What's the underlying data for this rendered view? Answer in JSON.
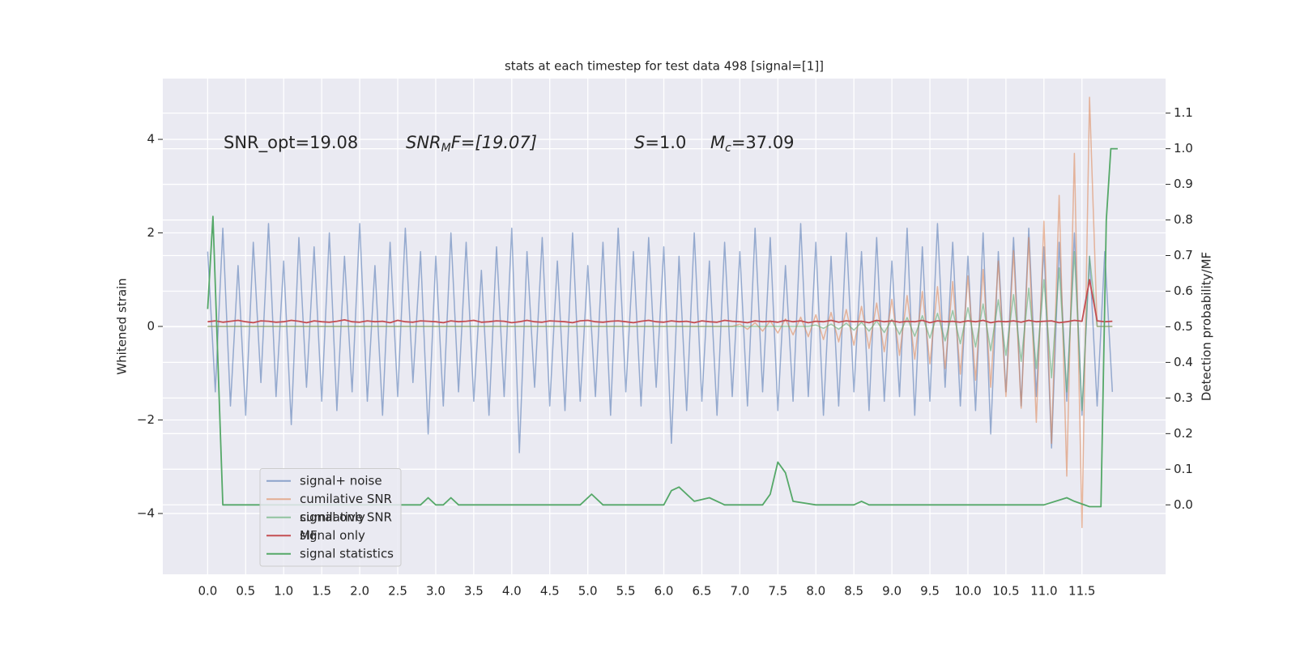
{
  "chart_data": {
    "type": "line",
    "title": "stats at each timestep for test data 498 [signal=[1]]",
    "ylabel": "Whitened strain",
    "y2label": "Detection probability/MF",
    "annotations": [
      {
        "text": "SNR_opt=19.08"
      },
      {
        "base": "SNR",
        "sub": "M",
        "rest": "F=[19.07]"
      },
      {
        "base": "S",
        "rest": "=1.0"
      },
      {
        "base": "M",
        "sub": "c",
        "rest": "=37.09"
      }
    ],
    "grid": true,
    "legend": "lower left",
    "ghost_legend": [
      "cumilative SNR",
      "signal only"
    ],
    "xlim": [
      -0.59,
      12.6
    ],
    "ylim": [
      -5.3,
      5.3
    ],
    "y2lim": [
      -0.195,
      1.197
    ],
    "xticks": [
      {
        "value": 0,
        "label": "0.0"
      },
      0.5,
      {
        "value": 1,
        "label": "1.0"
      },
      1.5,
      {
        "value": 2,
        "label": "2.0"
      },
      2.5,
      {
        "value": 3,
        "label": "3.0"
      },
      3.5,
      {
        "value": 4,
        "label": "4.0"
      },
      4.5,
      {
        "value": 5,
        "label": "5.0"
      },
      5.5,
      {
        "value": 6,
        "label": "6.0"
      },
      6.5,
      {
        "value": 7,
        "label": "7.0"
      },
      7.5,
      {
        "value": 8,
        "label": "8.0"
      },
      8.5,
      {
        "value": 9,
        "label": "9.0"
      },
      9.5,
      {
        "value": 10,
        "label": "10.0"
      },
      10.5,
      {
        "value": 11,
        "label": "11.0"
      },
      11.5
    ],
    "yticks": [
      {
        "value": -4,
        "label": "−4"
      },
      {
        "value": -2,
        "label": "−2"
      },
      0,
      2,
      4
    ],
    "y2ticks": [
      {
        "value": 0,
        "label": "0.0"
      },
      0.1,
      0.2,
      0.3,
      0.4,
      0.5,
      0.6,
      0.7,
      0.8,
      0.9,
      {
        "value": 1,
        "label": "1.0"
      },
      1.1
    ],
    "x": [
      0,
      0.1,
      0.2,
      0.3,
      0.4,
      0.5,
      0.6,
      0.7,
      0.8,
      0.9,
      1,
      1.1,
      1.2,
      1.3,
      1.4,
      1.5,
      1.6,
      1.7,
      1.8,
      1.9,
      2,
      2.1,
      2.2,
      2.3,
      2.4,
      2.5,
      2.6,
      2.7,
      2.8,
      2.9,
      3,
      3.1,
      3.2,
      3.3,
      3.4,
      3.5,
      3.6,
      3.7,
      3.8,
      3.9,
      4,
      4.1,
      4.2,
      4.3,
      4.4,
      4.5,
      4.6,
      4.7,
      4.8,
      4.9,
      5,
      5.1,
      5.2,
      5.3,
      5.4,
      5.5,
      5.6,
      5.7,
      5.8,
      5.9,
      6,
      6.1,
      6.2,
      6.3,
      6.4,
      6.5,
      6.6,
      6.7,
      6.8,
      6.9,
      7,
      7.1,
      7.2,
      7.3,
      7.4,
      7.5,
      7.6,
      7.7,
      7.8,
      7.9,
      8,
      8.1,
      8.2,
      8.3,
      8.4,
      8.5,
      8.6,
      8.7,
      8.8,
      8.9,
      9,
      9.1,
      9.2,
      9.3,
      9.4,
      9.5,
      9.6,
      9.7,
      9.8,
      9.9,
      10,
      10.1,
      10.2,
      10.3,
      10.4,
      10.5,
      10.6,
      10.7,
      10.8,
      10.9,
      11,
      11.1,
      11.2,
      11.3,
      11.4,
      11.5,
      11.6,
      11.7,
      11.8,
      11.9
    ],
    "series": [
      {
        "name": "signal+ noise",
        "color": "#4c72b0",
        "values": [
          1.6,
          -1.4,
          2.1,
          -1.7,
          1.3,
          -1.9,
          1.8,
          -1.2,
          2.2,
          -1.5,
          1.4,
          -2.1,
          1.9,
          -1.3,
          1.7,
          -1.6,
          2.0,
          -1.8,
          1.5,
          -1.4,
          2.2,
          -1.6,
          1.3,
          -1.9,
          1.8,
          -1.5,
          2.1,
          -1.2,
          1.6,
          -2.3,
          1.5,
          -1.7,
          2.0,
          -1.4,
          1.8,
          -1.6,
          1.2,
          -1.9,
          1.7,
          -1.5,
          2.1,
          -2.7,
          1.6,
          -1.3,
          1.9,
          -1.7,
          1.4,
          -1.8,
          2.0,
          -1.6,
          1.3,
          -1.5,
          1.8,
          -1.9,
          2.1,
          -1.4,
          1.6,
          -1.7,
          1.9,
          -1.3,
          1.7,
          -2.5,
          1.5,
          -1.8,
          2.0,
          -1.6,
          1.4,
          -1.9,
          1.8,
          -1.5,
          1.6,
          -1.7,
          2.1,
          -1.4,
          1.9,
          -1.8,
          1.3,
          -1.6,
          2.2,
          -1.5,
          1.8,
          -1.9,
          1.5,
          -1.7,
          2.0,
          -1.4,
          1.6,
          -1.8,
          1.9,
          -1.6,
          1.4,
          -1.5,
          2.1,
          -1.9,
          1.7,
          -1.6,
          2.2,
          -1.3,
          1.8,
          -1.7,
          1.5,
          -1.8,
          2.0,
          -2.3,
          1.6,
          -1.4,
          1.9,
          -1.7,
          2.1,
          -1.5,
          1.7,
          -2.6,
          1.8,
          -1.6,
          2.0,
          -1.9,
          1.5,
          -1.7,
          1.6,
          -1.4
        ]
      },
      {
        "name": "cumilative SNR",
        "color": "#dd8452",
        "values": [
          0,
          0,
          0,
          0,
          0,
          0,
          0,
          0,
          0,
          0,
          0,
          0,
          0,
          0,
          0,
          0,
          0,
          0,
          0,
          0,
          0,
          0,
          0,
          0,
          0,
          0,
          0,
          0,
          0,
          0,
          0,
          0,
          0,
          0,
          0,
          0,
          0,
          0,
          0,
          0,
          0,
          0,
          0,
          0,
          0,
          0,
          0,
          0,
          0,
          0,
          0,
          0,
          0,
          0,
          0,
          0,
          0,
          0,
          0,
          0,
          0,
          0,
          0,
          0,
          0,
          0,
          0,
          0,
          0,
          0,
          0.05,
          -0.06,
          0.08,
          -0.1,
          0.12,
          -0.14,
          0.16,
          -0.18,
          0.2,
          -0.22,
          0.25,
          -0.28,
          0.3,
          -0.33,
          0.36,
          -0.4,
          0.43,
          -0.47,
          0.5,
          -0.54,
          0.58,
          -0.62,
          0.66,
          -0.7,
          0.75,
          -0.8,
          0.85,
          -0.9,
          0.96,
          -1.02,
          1.08,
          -1.15,
          1.22,
          -1.3,
          1.4,
          -1.5,
          1.62,
          -1.75,
          1.9,
          -2.05,
          2.25,
          -2.5,
          2.8,
          -3.2,
          3.7,
          -4.3,
          4.9,
          0,
          0,
          0
        ]
      },
      {
        "name": "signal only",
        "color": "#55a868",
        "values": [
          0,
          0,
          0,
          0,
          0,
          0,
          0,
          0,
          0,
          0,
          0,
          0,
          0,
          0,
          0,
          0,
          0,
          0,
          0,
          0,
          0,
          0,
          0,
          0,
          0,
          0,
          0,
          0,
          0,
          0,
          0,
          0,
          0,
          0,
          0,
          0,
          0,
          0,
          0,
          0,
          0,
          0,
          0,
          0,
          0,
          0,
          0,
          0,
          0,
          0,
          0,
          0,
          0,
          0,
          0,
          0,
          0,
          0,
          0,
          0,
          0,
          0,
          0,
          0,
          0,
          0,
          0,
          0,
          0,
          0,
          0,
          0,
          0,
          0,
          0,
          0,
          0,
          0,
          0,
          0,
          0.03,
          -0.04,
          0.05,
          -0.06,
          0.07,
          -0.08,
          0.09,
          -0.1,
          0.12,
          -0.13,
          0.15,
          -0.17,
          0.19,
          -0.21,
          0.23,
          -0.25,
          0.28,
          -0.31,
          0.34,
          -0.37,
          0.4,
          -0.44,
          0.48,
          -0.52,
          0.57,
          -0.62,
          0.68,
          -0.75,
          0.82,
          -0.9,
          1.0,
          -1.1,
          1.25,
          -1.4,
          1.6,
          -1.8,
          1.5,
          0,
          0,
          0
        ]
      },
      {
        "name": "MF",
        "color": "#c44e52",
        "values": [
          0.1,
          0.12,
          0.09,
          0.11,
          0.13,
          0.1,
          0.08,
          0.12,
          0.11,
          0.09,
          0.1,
          0.13,
          0.11,
          0.08,
          0.12,
          0.1,
          0.09,
          0.11,
          0.14,
          0.1,
          0.09,
          0.12,
          0.1,
          0.11,
          0.08,
          0.13,
          0.1,
          0.09,
          0.12,
          0.11,
          0.1,
          0.08,
          0.12,
          0.1,
          0.11,
          0.13,
          0.09,
          0.1,
          0.12,
          0.11,
          0.08,
          0.1,
          0.13,
          0.1,
          0.09,
          0.12,
          0.11,
          0.1,
          0.08,
          0.12,
          0.13,
          0.1,
          0.09,
          0.11,
          0.12,
          0.1,
          0.08,
          0.11,
          0.13,
          0.1,
          0.09,
          0.12,
          0.1,
          0.11,
          0.08,
          0.12,
          0.1,
          0.09,
          0.13,
          0.11,
          0.1,
          0.08,
          0.12,
          0.1,
          0.11,
          0.09,
          0.13,
          0.1,
          0.12,
          0.08,
          0.11,
          0.1,
          0.13,
          0.09,
          0.12,
          0.1,
          0.11,
          0.08,
          0.13,
          0.1,
          0.12,
          0.09,
          0.11,
          0.1,
          0.13,
          0.08,
          0.12,
          0.1,
          0.11,
          0.09,
          0.12,
          0.1,
          0.13,
          0.08,
          0.11,
          0.1,
          0.12,
          0.09,
          0.13,
          0.1,
          0.11,
          0.12,
          0.08,
          0.1,
          0.13,
          0.11,
          1.0,
          0.12,
          0.1,
          0.11
        ]
      },
      {
        "name": "signal statistics",
        "color": "#55a868",
        "axis": "y2",
        "x": [
          0,
          0.07,
          0.2,
          0.5,
          1,
          1.5,
          2,
          2.5,
          2.8,
          2.9,
          3.0,
          3.1,
          3.2,
          3.3,
          3.5,
          4,
          4.5,
          4.9,
          5.05,
          5.2,
          5.5,
          6,
          6.1,
          6.2,
          6.4,
          6.6,
          6.8,
          7,
          7.3,
          7.4,
          7.5,
          7.6,
          7.7,
          8,
          8.5,
          8.6,
          8.7,
          9,
          10,
          11,
          11.3,
          11.4,
          11.6,
          11.65,
          11.75,
          11.82,
          11.88,
          11.92,
          11.97
        ],
        "values": [
          0.55,
          0.81,
          0,
          0,
          0,
          0,
          0,
          0,
          0,
          0.02,
          0,
          0,
          0.02,
          0,
          0,
          0,
          0,
          0,
          0.03,
          0,
          0,
          0,
          0.04,
          0.05,
          0.01,
          0.02,
          0,
          0,
          0,
          0.03,
          0.12,
          0.09,
          0.01,
          0,
          0,
          0.01,
          0,
          0,
          0,
          0,
          0.02,
          0.01,
          -0.005,
          -0.005,
          -0.005,
          0.8,
          1.0,
          1.0,
          1.0
        ]
      }
    ]
  }
}
